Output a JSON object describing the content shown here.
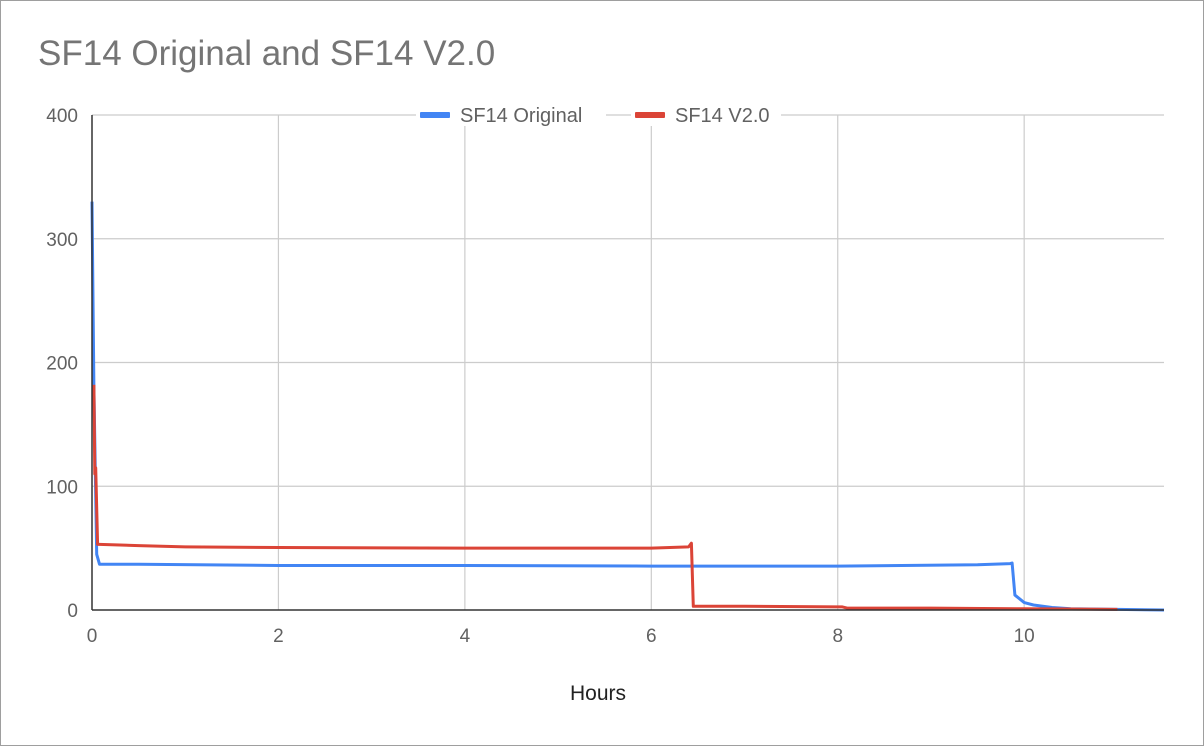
{
  "chart_data": {
    "type": "line",
    "title": "SF14 Original and SF14 V2.0",
    "xlabel": "Hours",
    "ylabel": "",
    "xlim": [
      0,
      11.5
    ],
    "ylim": [
      0,
      400
    ],
    "x_ticks": [
      0,
      2,
      4,
      6,
      8,
      10
    ],
    "y_ticks": [
      0,
      100,
      200,
      300,
      400
    ],
    "grid": true,
    "legend_position": "top-center",
    "series": [
      {
        "name": "SF14 Original",
        "color": "#4285f4",
        "x": [
          0,
          0.02,
          0.05,
          0.08,
          0.5,
          2,
          4,
          6,
          8,
          9.5,
          9.85,
          9.87,
          9.9,
          10.0,
          10.1,
          10.3,
          10.5,
          11.0,
          11.5
        ],
        "y": [
          330,
          180,
          45,
          37,
          37,
          36,
          36,
          35.5,
          35.5,
          36.5,
          37.5,
          38,
          12,
          6,
          4,
          2,
          1,
          0.5,
          0
        ]
      },
      {
        "name": "SF14 V2.0",
        "color": "#db4437",
        "x": [
          0.02,
          0.03,
          0.04,
          0.06,
          0.08,
          0.5,
          1,
          2,
          4,
          6,
          6.4,
          6.43,
          6.45,
          7,
          8,
          8.05,
          8.1,
          9,
          10,
          10.5,
          11
        ],
        "y": [
          182,
          110,
          115,
          53,
          53,
          52,
          51,
          50.5,
          50,
          50,
          51,
          54,
          3,
          3,
          2.5,
          2.5,
          1.5,
          1.5,
          1,
          0.8,
          0.5
        ]
      }
    ]
  }
}
